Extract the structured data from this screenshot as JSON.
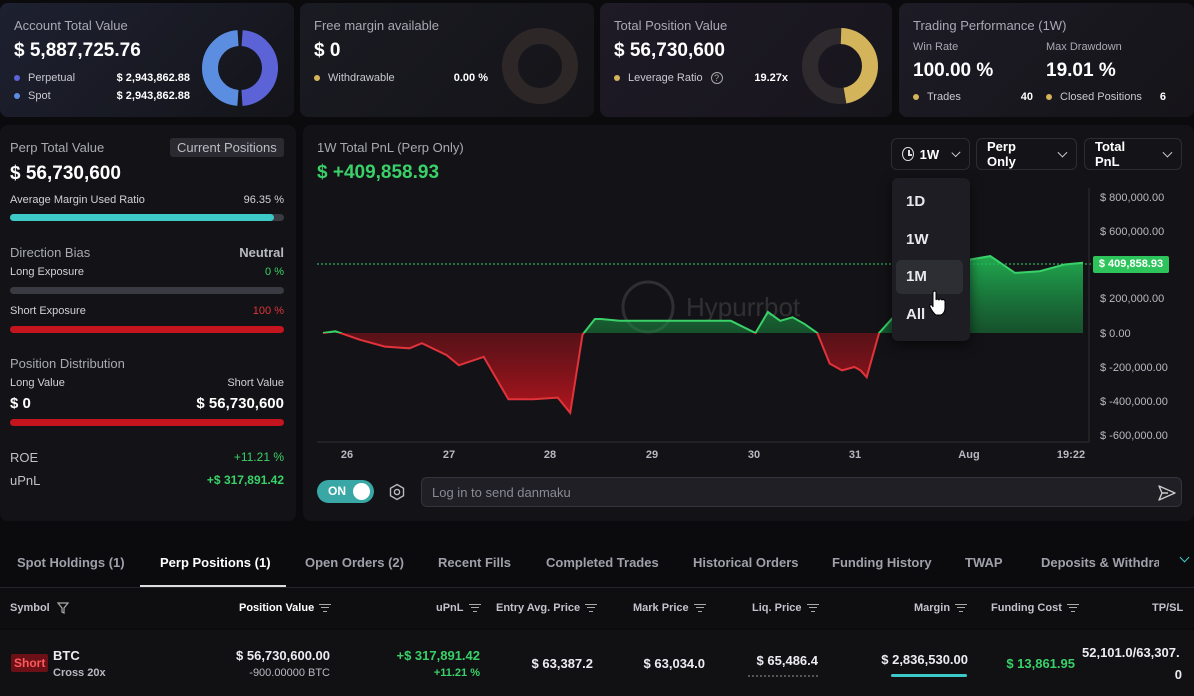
{
  "account": {
    "label": "Account Total Value",
    "value": "$ 5,887,725.76",
    "rows": [
      {
        "label": "Perpetual",
        "value": "$ 2,943,862.88",
        "color": "#5b63d6"
      },
      {
        "label": "Spot",
        "value": "$ 2,943,862.88",
        "color": "#5b8ee0"
      }
    ]
  },
  "free_margin": {
    "label": "Free margin available",
    "value": "$ 0",
    "row_label": "Withdrawable",
    "row_value": "0.00 %",
    "dot_color": "#d4b45a"
  },
  "position_value": {
    "label": "Total Position Value",
    "value": "$ 56,730,600",
    "row_label": "Leverage Ratio",
    "row_value": "19.27x",
    "dot_color": "#d4b45a"
  },
  "performance": {
    "label": "Trading Performance (1W)",
    "win_rate_label": "Win Rate",
    "win_rate": "100.00 %",
    "drawdown_label": "Max Drawdown",
    "drawdown": "19.01 %",
    "trades_label": "Trades",
    "trades": "40",
    "closed_label": "Closed Positions",
    "closed": "6"
  },
  "perp": {
    "label": "Perp Total Value",
    "badge": "Current Positions",
    "value": "$ 56,730,600",
    "margin_label": "Average Margin Used Ratio",
    "margin_value": "96.35 %",
    "margin_ratio": 0.9635,
    "bias_label": "Direction Bias",
    "bias_value": "Neutral",
    "long_label": "Long Exposure",
    "long_value": "0 %",
    "short_label": "Short Exposure",
    "short_value": "100 %",
    "dist_label": "Position Distribution",
    "long_val_label": "Long Value",
    "short_val_label": "Short Value",
    "long_val": "$ 0",
    "short_val": "$ 56,730,600",
    "roe_label": "ROE",
    "roe": "+11.21 %",
    "upnl_label": "uPnL",
    "upnl": "+$ 317,891.42"
  },
  "chart_panel": {
    "title": "1W Total PnL (Perp Only)",
    "value": "$ +409,858.93",
    "range_selected": "1W",
    "scope": "Perp Only",
    "metric": "Total PnL",
    "range_options": [
      "1D",
      "1W",
      "1M",
      "All"
    ],
    "toggle_label": "ON",
    "danmaku_placeholder": "Log in to send danmaku",
    "watermark": "Hypurrbot",
    "current_label": "$ 409,858.93"
  },
  "chart_data": {
    "type": "area",
    "xlabels": [
      "26",
      "27",
      "28",
      "29",
      "30",
      "31",
      "Aug",
      "19:22"
    ],
    "ytick_labels": [
      "$ 800,000.00",
      "$ 600,000.00",
      "$ 200,000.00",
      "$ 0.00",
      "$ -200,000.00",
      "$ -400,000.00",
      "$ -600,000.00"
    ],
    "ylim": [
      -600000,
      800000
    ],
    "x": [
      0,
      0.02,
      0.06,
      0.1,
      0.14,
      0.16,
      0.2,
      0.22,
      0.26,
      0.3,
      0.34,
      0.38,
      0.4,
      0.42,
      0.44,
      0.45,
      0.48,
      0.5,
      0.52,
      0.56,
      0.6,
      0.64,
      0.66,
      0.7,
      0.72,
      0.74,
      0.76,
      0.78,
      0.8,
      0.82,
      0.84,
      0.86,
      0.87,
      0.88,
      0.9,
      1.0,
      1.08,
      1.1,
      1.12,
      1.16,
      1.2,
      1.23
    ],
    "y": [
      0,
      10000,
      -40000,
      -80000,
      -90000,
      -60000,
      -130000,
      -190000,
      -140000,
      -390000,
      -390000,
      -380000,
      -470000,
      -10000,
      80000,
      80000,
      70000,
      70000,
      70000,
      70000,
      70000,
      70000,
      70000,
      0,
      120000,
      70000,
      90000,
      50000,
      0,
      -180000,
      -220000,
      -200000,
      -220000,
      -260000,
      0,
      400000,
      450000,
      400000,
      350000,
      360000,
      400000,
      409858.93
    ],
    "series_color_positive": "#39d168",
    "series_color_negative": "#e0333a"
  },
  "tabs": [
    "Spot Holdings (1)",
    "Perp Positions (1)",
    "Open Orders (2)",
    "Recent Fills",
    "Completed Trades",
    "Historical Orders",
    "Funding History",
    "TWAP",
    "Deposits & Withdraw"
  ],
  "table": {
    "headers": [
      "Symbol",
      "Position Value",
      "uPnL",
      "Entry Avg. Price",
      "Mark Price",
      "Liq. Price",
      "Margin",
      "Funding Cost",
      "TP/SL"
    ],
    "row": {
      "side": "Short",
      "symbol": "BTC",
      "leverage": "Cross 20x",
      "position_value": "$ 56,730,600.00",
      "position_size": "-900.00000 BTC",
      "upnl": "+$ 317,891.42",
      "upnl_pct": "+11.21 %",
      "entry": "$ 63,387.2",
      "mark": "$ 63,034.0",
      "liq": "$ 65,486.4",
      "margin": "$ 2,836,530.00",
      "funding": "$ 13,861.95",
      "tpsl_1": "52,101.0/63,307.",
      "tpsl_2": "0"
    }
  }
}
